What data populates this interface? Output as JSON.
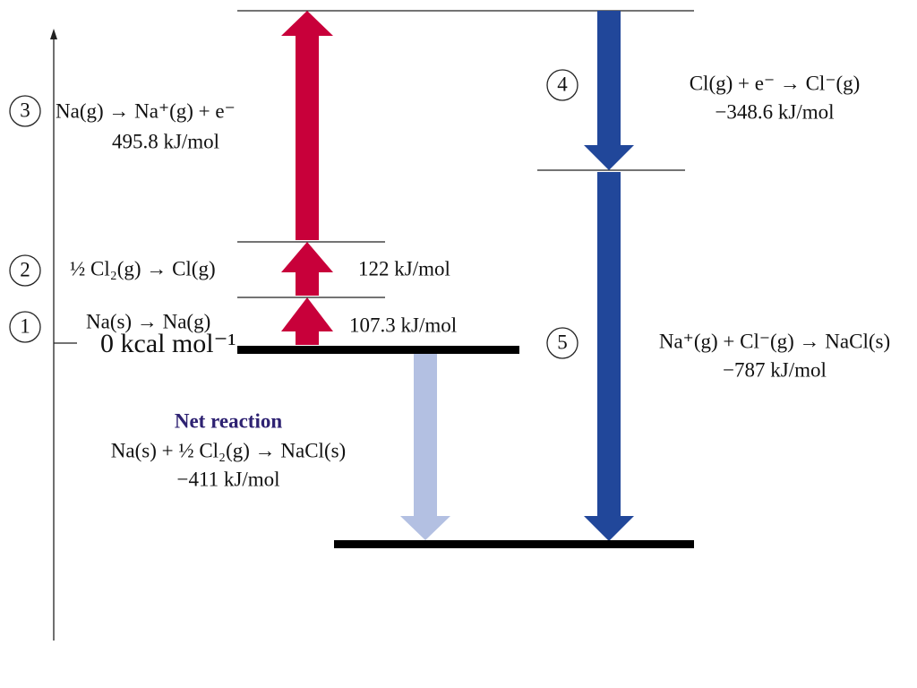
{
  "axis_label": "0 kcal mol⁻¹",
  "steps": [
    {
      "number": "1",
      "equation": "Na(s) → Na(g)",
      "energy": "107.3 kJ/mol"
    },
    {
      "number": "2",
      "equation": "½ Cl₂(g) → Cl(g)",
      "energy": "122 kJ/mol"
    },
    {
      "number": "3",
      "equation": "Na(g) → Na⁺(g) + e⁻",
      "energy": "495.8 kJ/mol"
    },
    {
      "number": "4",
      "equation": "Cl(g) + e⁻ → Cl⁻(g)",
      "energy": "−348.6 kJ/mol"
    },
    {
      "number": "5",
      "equation": "Na⁺(g) + Cl⁻(g) → NaCl(s)",
      "energy": "−787 kJ/mol"
    }
  ],
  "net_reaction": {
    "title": "Net reaction",
    "equation": "Na(s) + ½ Cl₂(g) → NaCl(s)",
    "energy": "−411 kJ/mol"
  }
}
